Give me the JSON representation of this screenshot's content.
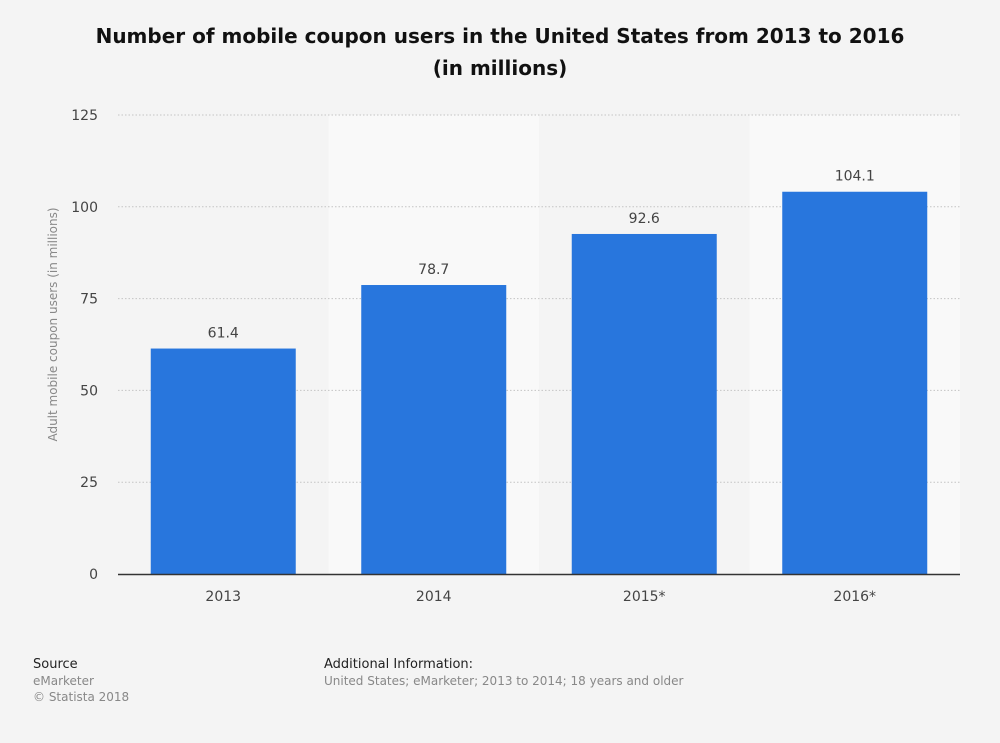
{
  "chart_data": {
    "type": "bar",
    "title": "Number of mobile coupon users in the United States from 2013 to 2016 (in millions)",
    "xlabel": "",
    "ylabel": "Adult mobile coupon users (in millions)",
    "categories": [
      "2013",
      "2014",
      "2015*",
      "2016*"
    ],
    "values": [
      61.4,
      78.7,
      92.6,
      104.1
    ],
    "value_labels": [
      "61.4",
      "78.7",
      "92.6",
      "104.1"
    ],
    "ylim": [
      0,
      125
    ],
    "yticks": [
      0,
      25,
      50,
      75,
      100,
      125
    ],
    "grid": true,
    "legend": "none",
    "bar_color": "#2876dd",
    "alt_band_color": "#f9f9f9"
  },
  "footer": {
    "source_heading": "Source",
    "source_name": "eMarketer",
    "copyright": "© Statista 2018",
    "info_heading": "Additional Information:",
    "info_text": "United States; eMarketer; 2013 to 2014; 18 years and older"
  }
}
